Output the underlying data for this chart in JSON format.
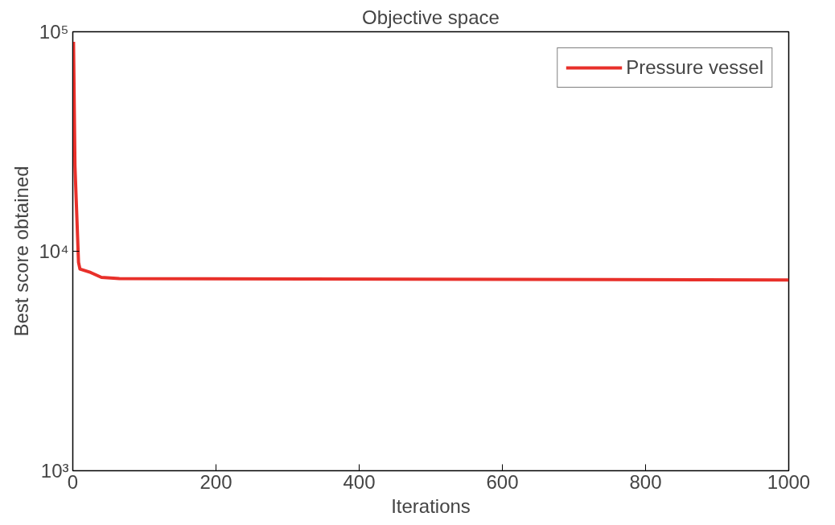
{
  "chart_data": {
    "type": "line",
    "title": "Objective space",
    "xlabel": "Iterations",
    "ylabel": "Best score obtained",
    "log": "y",
    "xlim": [
      0,
      1000
    ],
    "xticks": [
      0,
      200,
      400,
      600,
      800,
      1000
    ],
    "ylim": [
      1000,
      100000
    ],
    "yticks": [
      {
        "value": 1000,
        "label": "10³"
      },
      {
        "value": 10000,
        "label": "10⁴"
      },
      {
        "value": 100000,
        "label": "10⁵"
      }
    ],
    "grid": false,
    "legend": "top right",
    "marker": "none",
    "line_style": "solid",
    "series": [
      {
        "name": "Pressure vessel",
        "color": "#e8302a",
        "x": [
          1,
          3,
          8,
          10,
          25,
          40,
          65,
          1000
        ],
        "values": [
          90000,
          24600,
          8900,
          8300,
          8000,
          7600,
          7500,
          7400
        ]
      }
    ]
  }
}
